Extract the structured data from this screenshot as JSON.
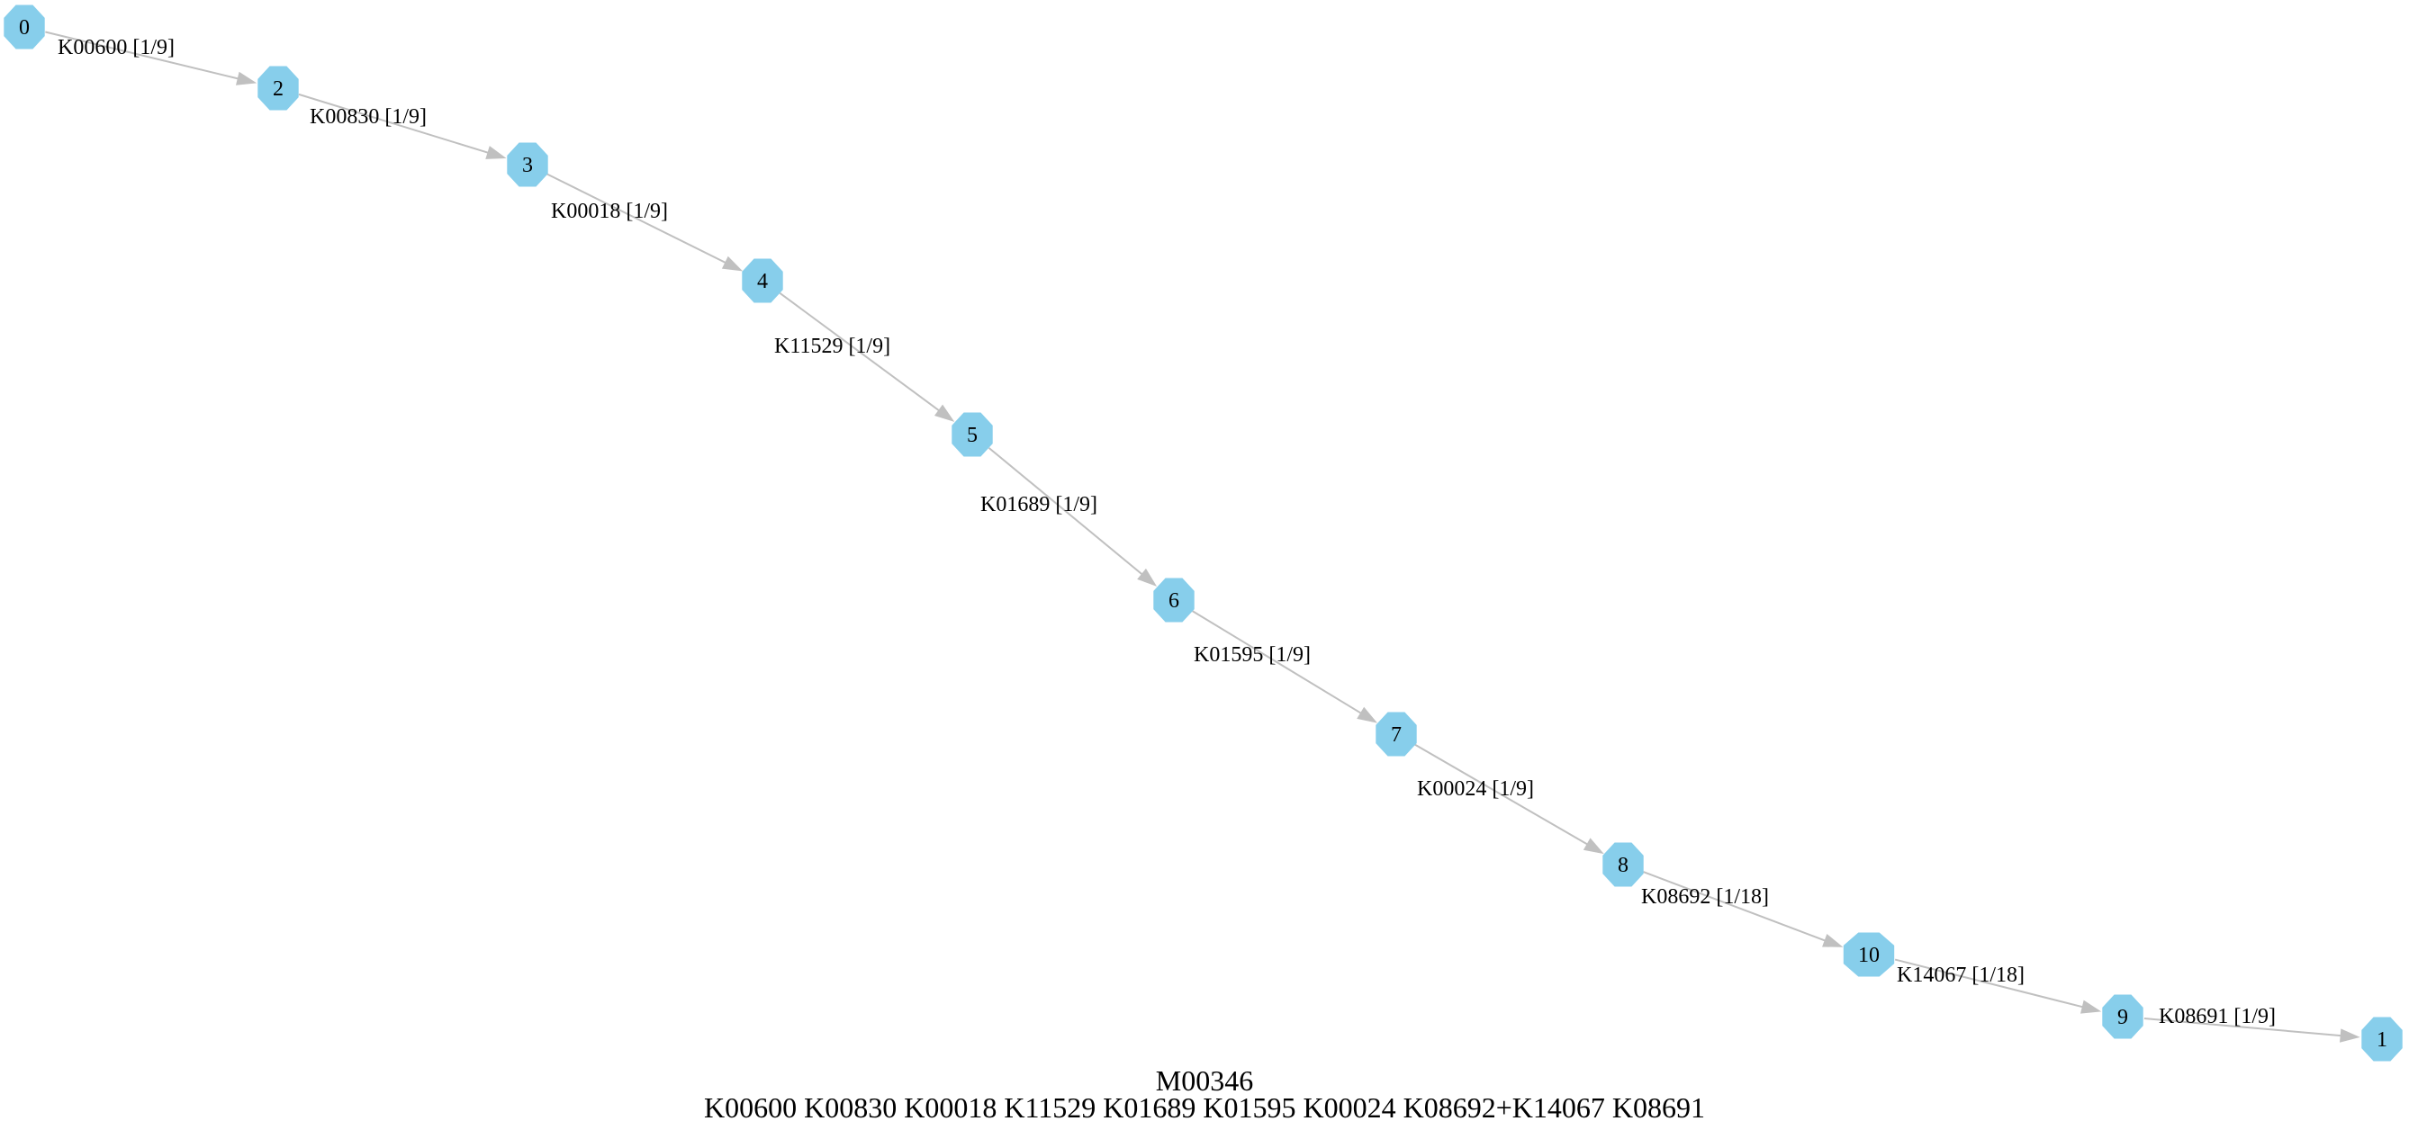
{
  "graph": {
    "title": "M00346",
    "subtitle": "K00600 K00830 K00018 K11529 K01689 K01595 K00024 K08692+K14067 K08691",
    "node_color": "#87ceeb",
    "edge_color": "#c0c0c0",
    "node_shape": "octagon",
    "nodes": [
      {
        "id": "0",
        "label": "0"
      },
      {
        "id": "2",
        "label": "2"
      },
      {
        "id": "3",
        "label": "3"
      },
      {
        "id": "4",
        "label": "4"
      },
      {
        "id": "5",
        "label": "5"
      },
      {
        "id": "6",
        "label": "6"
      },
      {
        "id": "7",
        "label": "7"
      },
      {
        "id": "8",
        "label": "8"
      },
      {
        "id": "10",
        "label": "10"
      },
      {
        "id": "9",
        "label": "9"
      },
      {
        "id": "1",
        "label": "1"
      }
    ],
    "edges": [
      {
        "from": "0",
        "to": "2",
        "label": "K00600 [1/9]"
      },
      {
        "from": "2",
        "to": "3",
        "label": "K00830 [1/9]"
      },
      {
        "from": "3",
        "to": "4",
        "label": "K00018 [1/9]"
      },
      {
        "from": "4",
        "to": "5",
        "label": "K11529 [1/9]"
      },
      {
        "from": "5",
        "to": "6",
        "label": "K01689 [1/9]"
      },
      {
        "from": "6",
        "to": "7",
        "label": "K01595 [1/9]"
      },
      {
        "from": "7",
        "to": "8",
        "label": "K00024 [1/9]"
      },
      {
        "from": "8",
        "to": "10",
        "label": "K08692 [1/18]"
      },
      {
        "from": "10",
        "to": "9",
        "label": "K14067 [1/18]"
      },
      {
        "from": "9",
        "to": "1",
        "label": "K08691 [1/9]"
      }
    ]
  }
}
